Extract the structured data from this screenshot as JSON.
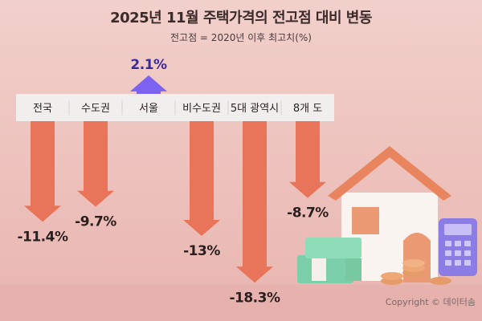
{
  "title": "2025년 11월 주택가격의 전고점 대비 변동",
  "subtitle": "전고점 = 2020년 이후 최고치(%)",
  "copyright": "Copyright © 데이터솜",
  "colors": {
    "negative": "#e8745a",
    "positive": "#7b62f0",
    "bar": "#f1efee"
  },
  "chart_data": {
    "type": "bar",
    "title": "2025년 11월 주택가격의 전고점 대비 변동",
    "subtitle": "전고점 = 2020년 이후 최고치(%)",
    "categories": [
      "전국",
      "수도권",
      "서울",
      "비수도권",
      "5대 광역시",
      "8개 도"
    ],
    "values": [
      -11.4,
      -9.7,
      2.1,
      -13,
      -18.3,
      -8.7
    ],
    "value_labels": [
      "-11.4%",
      "-9.7%",
      "2.1%",
      "-13%",
      "-18.3%",
      "-8.7%"
    ],
    "ylim": [
      -20,
      3
    ],
    "xlabel": "",
    "ylabel": ""
  }
}
